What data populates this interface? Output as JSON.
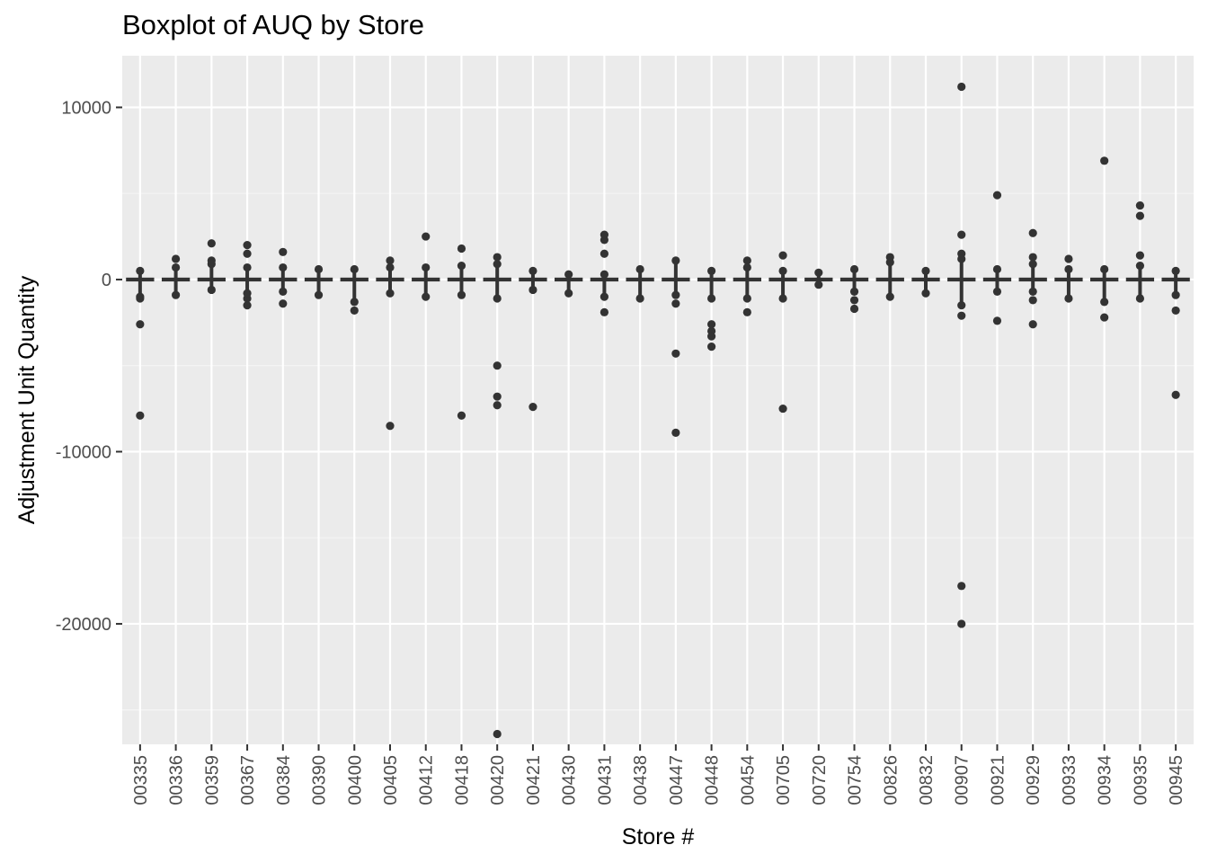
{
  "chart_data": {
    "type": "boxplot",
    "title": "Boxplot of AUQ by Store",
    "xlabel": "Store #",
    "ylabel": "Adjustment Unit Quantity",
    "ylim": [
      -27000,
      13000
    ],
    "y_ticks": [
      10000,
      0,
      -10000,
      -20000
    ],
    "y_tick_labels": [
      "10000",
      "0",
      "-10000",
      "-20000"
    ],
    "grid": true,
    "legend": "none",
    "colors": {
      "panel": "#ebebeb",
      "grid_major": "#ffffff",
      "grid_minor": "#f5f5f5",
      "mark": "#333333",
      "tick_text": "#4d4d4d"
    },
    "categories": [
      "00335",
      "00336",
      "00359",
      "00367",
      "00384",
      "00390",
      "00400",
      "00405",
      "00412",
      "00418",
      "00420",
      "00421",
      "00430",
      "00431",
      "00438",
      "00447",
      "00448",
      "00454",
      "00705",
      "00720",
      "00754",
      "00826",
      "00832",
      "00907",
      "00921",
      "00929",
      "00933",
      "00934",
      "00935",
      "00945"
    ],
    "stores": [
      {
        "store": "00335",
        "box": [
          -20,
          0,
          20
        ],
        "whiskers": [
          -1000,
          500
        ],
        "outliers": [
          -1100,
          -2600,
          -7900
        ]
      },
      {
        "store": "00336",
        "box": [
          -20,
          0,
          20
        ],
        "whiskers": [
          -900,
          700
        ],
        "outliers": [
          1200
        ]
      },
      {
        "store": "00359",
        "box": [
          -20,
          0,
          20
        ],
        "whiskers": [
          -600,
          900
        ],
        "outliers": [
          1100,
          2100
        ]
      },
      {
        "store": "00367",
        "box": [
          -20,
          0,
          20
        ],
        "whiskers": [
          -800,
          700
        ],
        "outliers": [
          -1100,
          -1500,
          1500,
          2000
        ]
      },
      {
        "store": "00384",
        "box": [
          -20,
          0,
          20
        ],
        "whiskers": [
          -700,
          700
        ],
        "outliers": [
          -1400,
          1600
        ]
      },
      {
        "store": "00390",
        "box": [
          -20,
          0,
          20
        ],
        "whiskers": [
          -900,
          600
        ],
        "outliers": []
      },
      {
        "store": "00400",
        "box": [
          -20,
          0,
          20
        ],
        "whiskers": [
          -1300,
          600
        ],
        "outliers": [
          -1800
        ]
      },
      {
        "store": "00405",
        "box": [
          -20,
          0,
          20
        ],
        "whiskers": [
          -800,
          700
        ],
        "outliers": [
          1100,
          -8500
        ]
      },
      {
        "store": "00412",
        "box": [
          -20,
          0,
          20
        ],
        "whiskers": [
          -1000,
          700
        ],
        "outliers": [
          2500
        ]
      },
      {
        "store": "00418",
        "box": [
          -20,
          0,
          20
        ],
        "whiskers": [
          -900,
          800
        ],
        "outliers": [
          1800,
          -7900
        ]
      },
      {
        "store": "00420",
        "box": [
          -20,
          0,
          20
        ],
        "whiskers": [
          -1100,
          900
        ],
        "outliers": [
          1300,
          -5000,
          -6800,
          -7300,
          -26400
        ]
      },
      {
        "store": "00421",
        "box": [
          -20,
          0,
          20
        ],
        "whiskers": [
          -600,
          500
        ],
        "outliers": [
          -7400
        ]
      },
      {
        "store": "00430",
        "box": [
          -20,
          0,
          20
        ],
        "whiskers": [
          -800,
          300
        ],
        "outliers": []
      },
      {
        "store": "00431",
        "box": [
          -20,
          0,
          20
        ],
        "whiskers": [
          -1000,
          300
        ],
        "outliers": [
          1500,
          2300,
          2600,
          -1900
        ]
      },
      {
        "store": "00438",
        "box": [
          -20,
          0,
          20
        ],
        "whiskers": [
          -1100,
          600
        ],
        "outliers": []
      },
      {
        "store": "00447",
        "box": [
          -20,
          0,
          20
        ],
        "whiskers": [
          -900,
          1100
        ],
        "outliers": [
          -1400,
          -4300,
          -8900
        ]
      },
      {
        "store": "00448",
        "box": [
          -20,
          0,
          20
        ],
        "whiskers": [
          -1100,
          500
        ],
        "outliers": [
          -2600,
          -3000,
          -3300,
          -3900
        ]
      },
      {
        "store": "00454",
        "box": [
          -20,
          0,
          20
        ],
        "whiskers": [
          -1100,
          700
        ],
        "outliers": [
          1100,
          -1900
        ]
      },
      {
        "store": "00705",
        "box": [
          -20,
          0,
          20
        ],
        "whiskers": [
          -1100,
          500
        ],
        "outliers": [
          1400,
          -7500
        ]
      },
      {
        "store": "00720",
        "box": [
          -20,
          0,
          20
        ],
        "whiskers": [
          -300,
          400
        ],
        "outliers": []
      },
      {
        "store": "00754",
        "box": [
          -20,
          0,
          20
        ],
        "whiskers": [
          -700,
          600
        ],
        "outliers": [
          -1200,
          -1700
        ]
      },
      {
        "store": "00826",
        "box": [
          -20,
          0,
          20
        ],
        "whiskers": [
          -1000,
          1000
        ],
        "outliers": [
          1300
        ]
      },
      {
        "store": "00832",
        "box": [
          -20,
          0,
          20
        ],
        "whiskers": [
          -800,
          500
        ],
        "outliers": []
      },
      {
        "store": "00907",
        "box": [
          -20,
          0,
          20
        ],
        "whiskers": [
          -1500,
          1200
        ],
        "outliers": [
          11200,
          2600,
          1500,
          -2100,
          -17800,
          -20000
        ]
      },
      {
        "store": "00921",
        "box": [
          -20,
          0,
          20
        ],
        "whiskers": [
          -700,
          600
        ],
        "outliers": [
          4900,
          -2400
        ]
      },
      {
        "store": "00929",
        "box": [
          -20,
          0,
          20
        ],
        "whiskers": [
          -700,
          900
        ],
        "outliers": [
          1300,
          2700,
          -1200,
          -2600
        ]
      },
      {
        "store": "00933",
        "box": [
          -20,
          0,
          20
        ],
        "whiskers": [
          -1100,
          600
        ],
        "outliers": [
          1200
        ]
      },
      {
        "store": "00934",
        "box": [
          -20,
          0,
          20
        ],
        "whiskers": [
          -1300,
          600
        ],
        "outliers": [
          6900,
          -2200
        ]
      },
      {
        "store": "00935",
        "box": [
          -20,
          0,
          20
        ],
        "whiskers": [
          -1100,
          800
        ],
        "outliers": [
          1400,
          3700,
          4300
        ]
      },
      {
        "store": "00945",
        "box": [
          -20,
          0,
          20
        ],
        "whiskers": [
          -900,
          500
        ],
        "outliers": [
          -1800,
          -6700
        ]
      }
    ]
  }
}
